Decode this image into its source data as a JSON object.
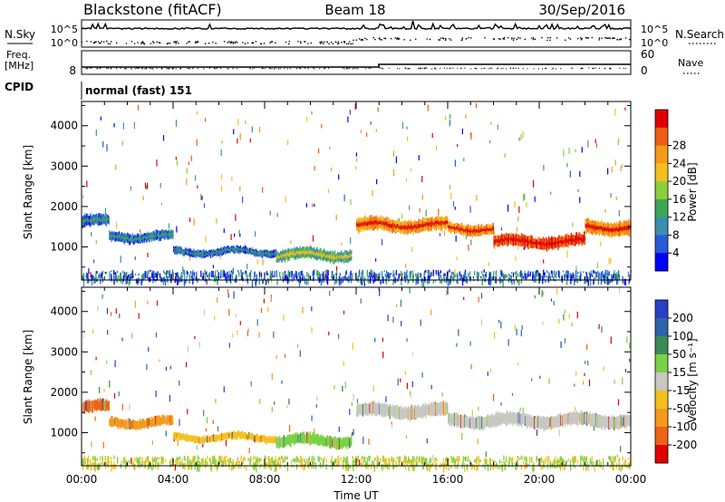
{
  "header": {
    "station": "Blackstone (fitACF)",
    "beam": "Beam 18",
    "date": "30/Sep/2016"
  },
  "summary_panels": {
    "nsky_label": "N.Sky",
    "nsearch_label": "N.Search",
    "noise_ticks": [
      "10^5",
      "10^0"
    ],
    "freq_label_top": "Freq.",
    "freq_label_unit": "[MHz]",
    "freq_ticks": [
      "8"
    ],
    "nave_label": "Nave",
    "nave_ticks": [
      "60",
      "0"
    ],
    "cpid_label": "CPID",
    "cpid_value": "normal (fast) 151"
  },
  "chart_data": [
    {
      "type": "heatmap",
      "name": "power",
      "ylabel": "Slant Range [km]",
      "yticks": [
        1000,
        2000,
        3000,
        4000
      ],
      "ylim": [
        180,
        4600
      ],
      "xlim": [
        0,
        24
      ],
      "colorbar_label": "Power [dB]",
      "colorbar_ticks": [
        4,
        8,
        12,
        16,
        20,
        24,
        28
      ],
      "colorbar_colors": [
        "#0000ff",
        "#2a5bd6",
        "#3a8fb0",
        "#3ea657",
        "#8ccf3a",
        "#f4c020",
        "#f59a1c",
        "#ef5c14",
        "#e00000"
      ],
      "bands": [
        {
          "t0": 0.0,
          "t1": 1.2,
          "center": 1620,
          "width": 260,
          "level": 0.18
        },
        {
          "t0": 1.2,
          "t1": 4.0,
          "center": 1250,
          "width": 220,
          "level": 0.2
        },
        {
          "t0": 4.0,
          "t1": 8.5,
          "center": 880,
          "width": 160,
          "level": 0.16
        },
        {
          "t0": 8.5,
          "t1": 11.8,
          "center": 800,
          "width": 260,
          "level": 0.35
        },
        {
          "t0": 12.0,
          "t1": 16.0,
          "center": 1540,
          "width": 300,
          "level": 0.7
        },
        {
          "t0": 16.0,
          "t1": 18.0,
          "center": 1450,
          "width": 260,
          "level": 0.72
        },
        {
          "t0": 18.0,
          "t1": 22.0,
          "center": 1130,
          "width": 280,
          "level": 0.85
        },
        {
          "t0": 22.0,
          "t1": 24.0,
          "center": 1480,
          "width": 330,
          "level": 0.7
        }
      ]
    },
    {
      "type": "heatmap",
      "name": "velocity",
      "ylabel": "Slant Range [km]",
      "yticks": [
        1000,
        2000,
        3000,
        4000
      ],
      "ylim": [
        180,
        4600
      ],
      "xlim": [
        0,
        24
      ],
      "colorbar_label": "Velocity [m s⁻¹]",
      "colorbar_ticks": [
        200,
        100,
        50,
        15,
        -15,
        -50,
        -100,
        -200
      ],
      "colorbar_colors": [
        "#2a3fc8",
        "#2f63a8",
        "#3a8a55",
        "#7bd145",
        "#c8c8c0",
        "#f4c020",
        "#f59a1c",
        "#ef6414",
        "#e00000"
      ],
      "bands": [
        {
          "t0": 0.0,
          "t1": 1.2,
          "center": 1620,
          "width": 260,
          "color": "#ef6414"
        },
        {
          "t0": 1.2,
          "t1": 4.0,
          "center": 1250,
          "width": 220,
          "color": "#f59a1c"
        },
        {
          "t0": 4.0,
          "t1": 8.5,
          "center": 880,
          "width": 160,
          "color": "#f4c020"
        },
        {
          "t0": 8.5,
          "t1": 11.8,
          "center": 800,
          "width": 260,
          "color": "#7bd145"
        },
        {
          "t0": 12.0,
          "t1": 16.0,
          "center": 1540,
          "width": 300,
          "color": "#c8c8c0"
        },
        {
          "t0": 16.0,
          "t1": 24.0,
          "center": 1300,
          "width": 300,
          "color": "#c8c8c0"
        }
      ]
    }
  ],
  "xaxis": {
    "label": "Time UT",
    "ticks": [
      "00:00",
      "04:00",
      "08:00",
      "12:00",
      "16:00",
      "20:00",
      "00:00"
    ]
  }
}
